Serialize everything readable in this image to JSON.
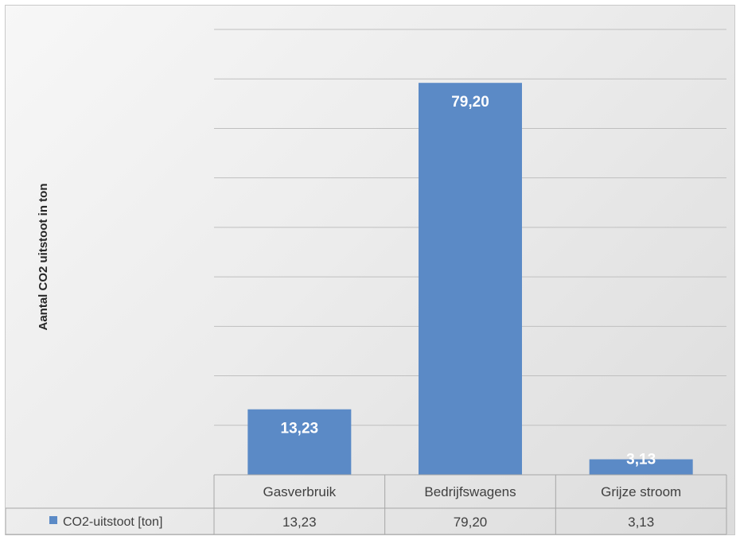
{
  "chart_data": {
    "type": "bar",
    "title": "",
    "xlabel": "",
    "ylabel": "Aantal CO2 uitstoot in ton",
    "categories": [
      "Gasverbruik",
      "Bedrijfswagens",
      "Grijze stroom"
    ],
    "series": [
      {
        "name": "CO2-uitstoot [ton]",
        "values": [
          13.23,
          79.2,
          3.13
        ],
        "labels": [
          "13,23",
          "79,20",
          "3,13"
        ],
        "color": "#5b8ac6"
      }
    ],
    "ylim": [
      0,
      90
    ],
    "grid": true,
    "legend": "data-table",
    "data_table": true
  }
}
